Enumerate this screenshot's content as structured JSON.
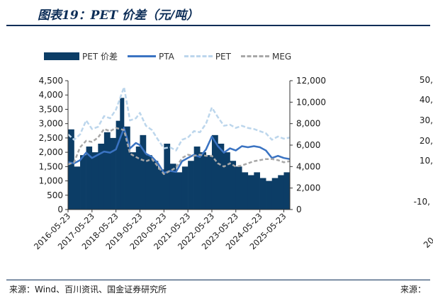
{
  "title": "图表19：PET 价差（元/吨）",
  "source": "来源：Wind、百川资讯、国金证券研究所",
  "source_right": "来源：",
  "colors": {
    "spread": "#0c3d66",
    "pta": "#3a73c2",
    "pet": "#bcd6ec",
    "meg": "#a8a8a8",
    "rule": "#0c2d57"
  },
  "right_clip_ticks": [
    "50,",
    "40,",
    "30,",
    "20,",
    "10,",
    "-10,",
    "20"
  ],
  "chart_data": {
    "type": "bar+line",
    "title": "PET 价差（元/吨）",
    "legend": [
      "PET 价差",
      "PTA",
      "PET",
      "MEG"
    ],
    "legend_position": "top",
    "y_left": {
      "min": 0,
      "max": 4500,
      "ticks": [
        "0",
        "500",
        "1,000",
        "1,500",
        "2,000",
        "2,500",
        "3,000",
        "3,500",
        "4,000",
        "4,500"
      ]
    },
    "y_right": {
      "min": 0,
      "max": 12000,
      "ticks": [
        "0",
        "2,000",
        "4,000",
        "6,000",
        "8,000",
        "10,000",
        "12,000"
      ]
    },
    "x_ticks": [
      "2016-05-23",
      "2017-05-23",
      "2018-05-23",
      "2019-05-23",
      "2020-05-23",
      "2021-05-23",
      "2022-05-23",
      "2023-05-23",
      "2024-05-23",
      "2025-05-23"
    ],
    "x_range": [
      "2016-05-23",
      "2025-08-23"
    ],
    "series": [
      {
        "name": "PET 价差",
        "axis": "left",
        "type": "bar",
        "points": [
          [
            "2016-05-23",
            2800
          ],
          [
            "2016-08-23",
            1500
          ],
          [
            "2016-11-23",
            1900
          ],
          [
            "2017-02-23",
            2200
          ],
          [
            "2017-05-23",
            2000
          ],
          [
            "2017-08-23",
            2300
          ],
          [
            "2017-11-23",
            2700
          ],
          [
            "2018-02-23",
            2500
          ],
          [
            "2018-05-23",
            3100
          ],
          [
            "2018-07-23",
            3900
          ],
          [
            "2018-09-23",
            2900
          ],
          [
            "2018-12-23",
            2000
          ],
          [
            "2019-03-23",
            2200
          ],
          [
            "2019-05-23",
            2600
          ],
          [
            "2019-08-23",
            1900
          ],
          [
            "2019-11-23",
            1700
          ],
          [
            "2020-02-23",
            1400
          ],
          [
            "2020-05-23",
            2300
          ],
          [
            "2020-08-23",
            1600
          ],
          [
            "2020-11-23",
            1300
          ],
          [
            "2021-02-23",
            1500
          ],
          [
            "2021-05-23",
            1700
          ],
          [
            "2021-08-23",
            2200
          ],
          [
            "2021-11-23",
            2000
          ],
          [
            "2022-02-23",
            1900
          ],
          [
            "2022-05-23",
            2600
          ],
          [
            "2022-08-23",
            2300
          ],
          [
            "2022-11-23",
            2000
          ],
          [
            "2023-02-23",
            1700
          ],
          [
            "2023-05-23",
            1500
          ],
          [
            "2023-08-23",
            1300
          ],
          [
            "2023-11-23",
            1200
          ],
          [
            "2024-02-23",
            1300
          ],
          [
            "2024-05-23",
            1100
          ],
          [
            "2024-08-23",
            1000
          ],
          [
            "2024-11-23",
            1100
          ],
          [
            "2025-02-23",
            1200
          ],
          [
            "2025-05-23",
            1300
          ],
          [
            "2025-08-23",
            1250
          ]
        ]
      },
      {
        "name": "PTA",
        "axis": "right",
        "type": "line",
        "points": [
          [
            "2016-05-23",
            4400
          ],
          [
            "2016-08-23",
            4300
          ],
          [
            "2016-11-23",
            4600
          ],
          [
            "2017-02-23",
            5300
          ],
          [
            "2017-05-23",
            4800
          ],
          [
            "2017-08-23",
            5100
          ],
          [
            "2017-11-23",
            5400
          ],
          [
            "2018-02-23",
            5300
          ],
          [
            "2018-05-23",
            5600
          ],
          [
            "2018-09-23",
            7600
          ],
          [
            "2018-12-23",
            5700
          ],
          [
            "2019-03-23",
            6200
          ],
          [
            "2019-05-23",
            6000
          ],
          [
            "2019-08-23",
            5200
          ],
          [
            "2019-11-23",
            4900
          ],
          [
            "2020-02-23",
            4300
          ],
          [
            "2020-05-23",
            3400
          ],
          [
            "2020-08-23",
            3600
          ],
          [
            "2020-11-23",
            3500
          ],
          [
            "2021-02-23",
            4500
          ],
          [
            "2021-05-23",
            4800
          ],
          [
            "2021-08-23",
            5100
          ],
          [
            "2021-11-23",
            4900
          ],
          [
            "2022-02-23",
            5600
          ],
          [
            "2022-05-23",
            6800
          ],
          [
            "2022-08-23",
            5900
          ],
          [
            "2022-11-23",
            5300
          ],
          [
            "2023-02-23",
            5700
          ],
          [
            "2023-05-23",
            5500
          ],
          [
            "2023-08-23",
            5900
          ],
          [
            "2023-11-23",
            5800
          ],
          [
            "2024-02-23",
            5900
          ],
          [
            "2024-05-23",
            5800
          ],
          [
            "2024-08-23",
            5500
          ],
          [
            "2024-11-23",
            4800
          ],
          [
            "2025-02-23",
            5000
          ],
          [
            "2025-05-23",
            4800
          ],
          [
            "2025-08-23",
            4700
          ]
        ]
      },
      {
        "name": "PET",
        "axis": "right",
        "type": "line",
        "points": [
          [
            "2016-05-23",
            7000
          ],
          [
            "2016-08-23",
            6500
          ],
          [
            "2016-11-23",
            7000
          ],
          [
            "2017-02-23",
            8300
          ],
          [
            "2017-05-23",
            7500
          ],
          [
            "2017-08-23",
            7700
          ],
          [
            "2017-11-23",
            8700
          ],
          [
            "2018-02-23",
            8500
          ],
          [
            "2018-05-23",
            9300
          ],
          [
            "2018-09-23",
            11400
          ],
          [
            "2018-12-23",
            8300
          ],
          [
            "2019-03-23",
            8500
          ],
          [
            "2019-05-23",
            9000
          ],
          [
            "2019-08-23",
            7800
          ],
          [
            "2019-11-23",
            7400
          ],
          [
            "2020-02-23",
            6500
          ],
          [
            "2020-05-23",
            5700
          ],
          [
            "2020-08-23",
            5800
          ],
          [
            "2020-11-23",
            5500
          ],
          [
            "2021-02-23",
            6500
          ],
          [
            "2021-05-23",
            6700
          ],
          [
            "2021-08-23",
            7300
          ],
          [
            "2021-11-23",
            7200
          ],
          [
            "2022-02-23",
            8000
          ],
          [
            "2022-05-23",
            9500
          ],
          [
            "2022-08-23",
            8600
          ],
          [
            "2022-11-23",
            7800
          ],
          [
            "2023-02-23",
            7900
          ],
          [
            "2023-05-23",
            7600
          ],
          [
            "2023-08-23",
            7800
          ],
          [
            "2023-11-23",
            7600
          ],
          [
            "2024-02-23",
            7500
          ],
          [
            "2024-05-23",
            7300
          ],
          [
            "2024-08-23",
            7100
          ],
          [
            "2024-11-23",
            6500
          ],
          [
            "2025-02-23",
            6800
          ],
          [
            "2025-05-23",
            6600
          ],
          [
            "2025-08-23",
            6700
          ]
        ]
      },
      {
        "name": "MEG",
        "axis": "right",
        "type": "line",
        "dashed": true,
        "points": [
          [
            "2016-05-23",
            4200
          ],
          [
            "2016-08-23",
            4400
          ],
          [
            "2016-11-23",
            5800
          ],
          [
            "2017-02-23",
            6400
          ],
          [
            "2017-05-23",
            6300
          ],
          [
            "2017-08-23",
            6700
          ],
          [
            "2017-11-23",
            7500
          ],
          [
            "2018-02-23",
            7300
          ],
          [
            "2018-05-23",
            7600
          ],
          [
            "2018-09-23",
            7400
          ],
          [
            "2018-12-23",
            5200
          ],
          [
            "2019-03-23",
            4900
          ],
          [
            "2019-05-23",
            4700
          ],
          [
            "2019-08-23",
            4500
          ],
          [
            "2019-11-23",
            4700
          ],
          [
            "2020-02-23",
            4000
          ],
          [
            "2020-05-23",
            3300
          ],
          [
            "2020-08-23",
            3600
          ],
          [
            "2020-11-23",
            3900
          ],
          [
            "2021-02-23",
            4800
          ],
          [
            "2021-05-23",
            5100
          ],
          [
            "2021-08-23",
            5000
          ],
          [
            "2021-11-23",
            5100
          ],
          [
            "2022-02-23",
            5000
          ],
          [
            "2022-05-23",
            5000
          ],
          [
            "2022-08-23",
            4300
          ],
          [
            "2022-11-23",
            4000
          ],
          [
            "2023-02-23",
            4300
          ],
          [
            "2023-05-23",
            4000
          ],
          [
            "2023-08-23",
            4100
          ],
          [
            "2023-11-23",
            4300
          ],
          [
            "2024-02-23",
            4500
          ],
          [
            "2024-05-23",
            4600
          ],
          [
            "2024-08-23",
            4700
          ],
          [
            "2024-11-23",
            4700
          ],
          [
            "2025-02-23",
            4600
          ],
          [
            "2025-05-23",
            4400
          ],
          [
            "2025-08-23",
            4500
          ]
        ]
      }
    ]
  }
}
